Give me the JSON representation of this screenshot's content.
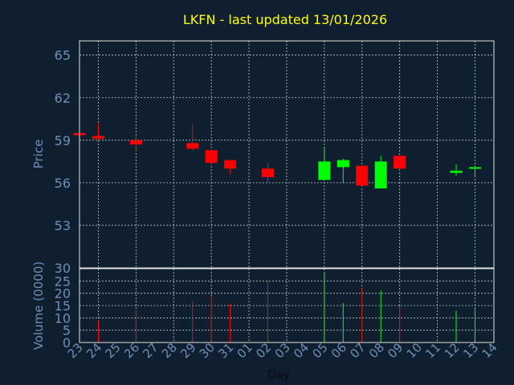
{
  "chart_data": {
    "type": "candlestick",
    "title": "LKFN - last updated 13/01/2026",
    "xlabel": "Day",
    "x_tick_labels": [
      "23",
      "24",
      "25",
      "26",
      "27",
      "28",
      "29",
      "30",
      "31",
      "01",
      "02",
      "03",
      "04",
      "05",
      "06",
      "07",
      "08",
      "09",
      "10",
      "11",
      "12",
      "13",
      "14"
    ],
    "price_panel": {
      "ylabel": "Price",
      "ylim": [
        50,
        66
      ],
      "y_ticks": [
        65,
        62,
        59,
        56,
        53
      ],
      "grid": true
    },
    "volume_panel": {
      "ylabel": "Volume (0000)",
      "ylim": [
        0,
        30
      ],
      "y_ticks": [
        30,
        25,
        20,
        15,
        10,
        5,
        0
      ],
      "grid": true
    },
    "candles": [
      {
        "x": 23.0,
        "open": 59.5,
        "close": 59.35,
        "high": 59.5,
        "low": 59.3,
        "volume": 0
      },
      {
        "x": 24.0,
        "open": 59.3,
        "close": 59.1,
        "high": 60.2,
        "low": 59.0,
        "volume": 9
      },
      {
        "x": 26.0,
        "open": 59.0,
        "close": 58.7,
        "high": 59.3,
        "low": 58.2,
        "volume": 13
      },
      {
        "x": 29.0,
        "open": 58.8,
        "close": 58.4,
        "high": 60.1,
        "low": 58.3,
        "volume": 17
      },
      {
        "x": 30.0,
        "open": 58.3,
        "close": 57.4,
        "high": 58.3,
        "low": 57.3,
        "volume": 19
      },
      {
        "x": 31.0,
        "open": 57.6,
        "close": 57.0,
        "high": 57.6,
        "low": 56.6,
        "volume": 16
      },
      {
        "x": 33.0,
        "open": 57.0,
        "close": 56.4,
        "high": 57.4,
        "low": 56.0,
        "volume": 25
      },
      {
        "x": 36.0,
        "open": 56.2,
        "close": 57.5,
        "high": 58.5,
        "low": 56.2,
        "volume": 28
      },
      {
        "x": 37.0,
        "open": 57.1,
        "close": 57.6,
        "high": 57.7,
        "low": 56.0,
        "volume": 16
      },
      {
        "x": 38.0,
        "open": 57.2,
        "close": 55.8,
        "high": 57.2,
        "low": 55.7,
        "volume": 22
      },
      {
        "x": 39.0,
        "open": 55.6,
        "close": 57.5,
        "high": 57.9,
        "low": 55.6,
        "volume": 21
      },
      {
        "x": 40.0,
        "open": 57.9,
        "close": 57.0,
        "high": 57.9,
        "low": 56.9,
        "volume": 15
      },
      {
        "x": 43.0,
        "open": 56.7,
        "close": 56.85,
        "high": 57.3,
        "low": 56.5,
        "volume": 13
      },
      {
        "x": 44.0,
        "open": 57.0,
        "close": 57.1,
        "high": 57.2,
        "low": 56.5,
        "volume": 14
      }
    ],
    "colors": {
      "background": "#0f1f30",
      "plot_background": "#0f1f30",
      "frame": "#e0e0e0",
      "grid": "#c8c8c8",
      "title": "#ffff00",
      "axis_label": "#6f8fb5",
      "tick_label": "#6f8fb5",
      "up": "#00ff00",
      "down": "#ff0000"
    }
  }
}
